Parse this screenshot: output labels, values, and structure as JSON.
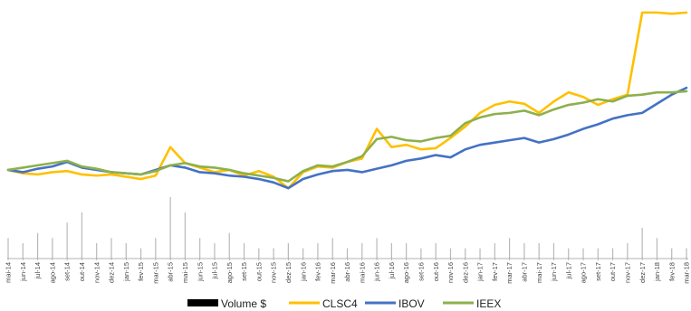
{
  "chart_data": {
    "type": "line",
    "title": "",
    "xlabel": "",
    "ylabel": "",
    "grid": false,
    "legend_placement": "bottom",
    "categories": [
      "mai-14",
      "jun-14",
      "jul-14",
      "ago-14",
      "set-14",
      "out-14",
      "nov-14",
      "dez-14",
      "jan-15",
      "fev-15",
      "mar-15",
      "abr-15",
      "mai-15",
      "jun-15",
      "jul-15",
      "ago-15",
      "set-15",
      "out-15",
      "nov-15",
      "dez-15",
      "jan-16",
      "fev-16",
      "mar-16",
      "abr-16",
      "mai-16",
      "jun-16",
      "jul-16",
      "ago-16",
      "set-16",
      "out-16",
      "nov-16",
      "dez-16",
      "jan-17",
      "fev-17",
      "mar-17",
      "abr-17",
      "mai-17",
      "jun-17",
      "jul-17",
      "ago-17",
      "set-17",
      "out-17",
      "nov-17",
      "dez-17",
      "jan-18",
      "fev-18",
      "mar-18"
    ],
    "series": [
      {
        "name": "CLSC4",
        "color": "#FFC000",
        "values": [
          100,
          97,
          96,
          98,
          99,
          96,
          95,
          96,
          94,
          92,
          95,
          120,
          106,
          102,
          98,
          100,
          95,
          99,
          94,
          84,
          98,
          103,
          102,
          107,
          110,
          136,
          120,
          122,
          118,
          119,
          128,
          138,
          150,
          157,
          160,
          158,
          150,
          160,
          168,
          164,
          157,
          162,
          166,
          238,
          238,
          237,
          238
        ]
      },
      {
        "name": "IBOV",
        "color": "#4472C4",
        "values": [
          100,
          98,
          101,
          103,
          107,
          102,
          100,
          98,
          97,
          96,
          100,
          104,
          102,
          98,
          97,
          95,
          94,
          92,
          89,
          84,
          92,
          96,
          99,
          100,
          98,
          101,
          104,
          108,
          110,
          113,
          111,
          118,
          122,
          124,
          126,
          128,
          124,
          127,
          131,
          136,
          140,
          145,
          148,
          150,
          158,
          166,
          172
        ]
      },
      {
        "name": "IEEX",
        "color": "#8DB04C",
        "values": [
          100,
          102,
          104,
          106,
          108,
          103,
          101,
          98,
          97,
          96,
          99,
          104,
          106,
          103,
          102,
          100,
          97,
          95,
          93,
          90,
          99,
          104,
          103,
          107,
          112,
          127,
          129,
          126,
          125,
          128,
          130,
          141,
          146,
          149,
          150,
          152,
          148,
          153,
          157,
          159,
          162,
          160,
          165,
          166,
          168,
          168,
          169
        ]
      }
    ],
    "volume": {
      "name": "Volume $",
      "color": "#000000",
      "values": [
        4,
        3,
        5,
        4,
        7,
        9,
        3,
        4,
        3,
        2,
        4,
        12,
        9,
        4,
        3,
        5,
        3,
        2,
        2,
        3,
        2,
        3,
        4,
        2,
        3,
        4,
        3,
        3,
        2,
        3,
        2,
        2,
        2,
        3,
        4,
        3,
        3,
        3,
        2,
        2,
        2,
        2,
        3,
        6,
        4,
        2,
        2
      ]
    },
    "legend": [
      {
        "label": "Volume $",
        "color": "#000000",
        "kind": "bar"
      },
      {
        "label": "CLSC4",
        "color": "#FFC000",
        "kind": "line"
      },
      {
        "label": "IBOV",
        "color": "#4472C4",
        "kind": "line"
      },
      {
        "label": "IEEX",
        "color": "#8DB04C",
        "kind": "line"
      }
    ]
  }
}
